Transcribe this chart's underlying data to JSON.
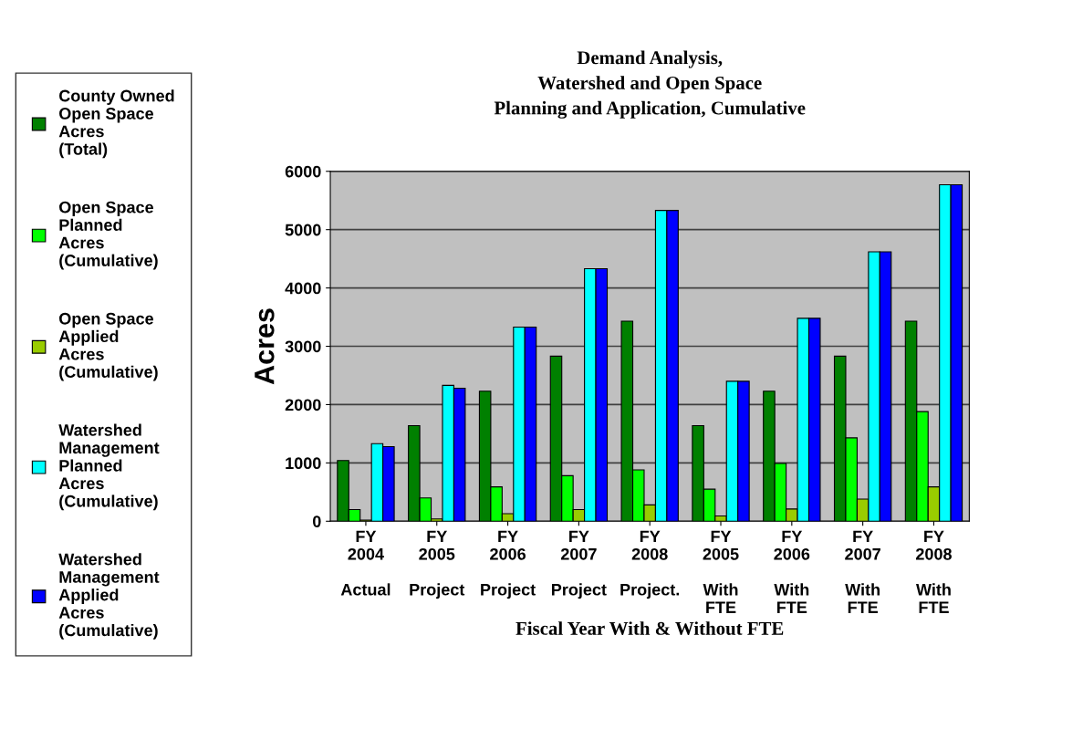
{
  "chart_data": {
    "type": "bar",
    "title": "Demand Analysis,\nWatershed and Open Space\nPlanning and Application, Cumulative",
    "xlabel": "Fiscal Year With & Without FTE",
    "ylabel": "Acres",
    "categories": [
      "FY\n2004\n\nActual",
      "FY\n2005\n\nProject",
      "FY\n2006\n\nProject",
      "FY\n2007\n\nProject",
      "FY\n2008\n\nProject.",
      "FY\n2005\n\nWith\nFTE",
      "FY\n2006\n\nWith\nFTE",
      "FY\n2007\n\nWith\nFTE",
      "FY\n2008\n\nWith\nFTE"
    ],
    "series": [
      {
        "name": "County Owned Open Space Acres (Total)",
        "color": "#008000",
        "values": [
          1040,
          1640,
          2230,
          2830,
          3430,
          1640,
          2230,
          2830,
          3430
        ]
      },
      {
        "name": "Open Space Planned Acres (Cumulative)",
        "color": "#00ff00",
        "values": [
          200,
          400,
          590,
          780,
          880,
          550,
          990,
          1430,
          1880
        ]
      },
      {
        "name": "Open Space Applied Acres (Cumulative)",
        "color": "#99cc00",
        "values": [
          20,
          40,
          130,
          200,
          280,
          90,
          210,
          380,
          590
        ]
      },
      {
        "name": "Watershed Management Planned Acres (Cumulative)",
        "color": "#00ffff",
        "values": [
          1330,
          2330,
          3330,
          4330,
          5330,
          2400,
          3480,
          4620,
          5770
        ]
      },
      {
        "name": "Watershed Management Applied Acres (Cumulative)",
        "color": "#0000ff",
        "values": [
          1280,
          2280,
          3330,
          4330,
          5330,
          2400,
          3480,
          4620,
          5770
        ]
      }
    ],
    "ylim": [
      0,
      6000
    ],
    "yticks": [
      0,
      1000,
      2000,
      3000,
      4000,
      5000,
      6000
    ],
    "grid": "y",
    "legend": "left"
  }
}
